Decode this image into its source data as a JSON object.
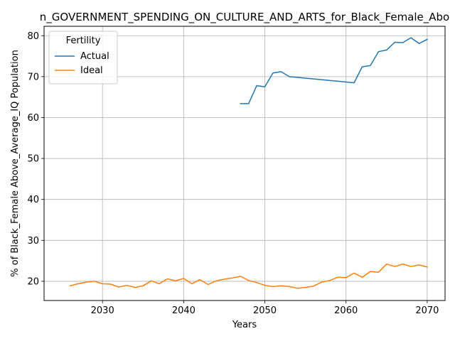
{
  "chart_data": {
    "type": "line",
    "title": "n_GOVERNMENT_SPENDING_ON_CULTURE_AND_ARTS_for_Black_Female_Abo",
    "xlabel": "Years",
    "ylabel": "% of Black_Female Above_Average_IQ Population",
    "xlim": [
      2022.8,
      2072.2
    ],
    "ylim": [
      15.3,
      82.3
    ],
    "xticks": [
      2030,
      2040,
      2050,
      2060,
      2070
    ],
    "yticks": [
      20,
      30,
      40,
      50,
      60,
      70,
      80
    ],
    "grid": true,
    "legend": {
      "title": "Fertility",
      "location": "upper left"
    },
    "series": [
      {
        "name": "Actual",
        "color": "#1f77b4",
        "x": [
          2047,
          2048,
          2049,
          2050,
          2051,
          2052,
          2053,
          2061,
          2062,
          2063,
          2064,
          2065,
          2066,
          2067,
          2068,
          2069,
          2070
        ],
        "y": [
          63.4,
          63.4,
          67.8,
          67.5,
          70.9,
          71.2,
          70.0,
          68.5,
          72.4,
          72.7,
          76.1,
          76.5,
          78.4,
          78.3,
          79.5,
          78.1,
          79.1
        ]
      },
      {
        "name": "Ideal",
        "color": "#ff7f0e",
        "x": [
          2026,
          2027,
          2028,
          2029,
          2030,
          2031,
          2032,
          2033,
          2034,
          2035,
          2036,
          2037,
          2038,
          2039,
          2040,
          2041,
          2042,
          2043,
          2044,
          2045,
          2046,
          2047,
          2048,
          2049,
          2050,
          2051,
          2052,
          2053,
          2054,
          2055,
          2056,
          2057,
          2058,
          2059,
          2060,
          2061,
          2062,
          2063,
          2064,
          2065,
          2066,
          2067,
          2068,
          2069,
          2070
        ],
        "y": [
          18.9,
          19.4,
          19.8,
          20.0,
          19.4,
          19.3,
          18.6,
          19.0,
          18.5,
          18.9,
          20.1,
          19.4,
          20.6,
          20.1,
          20.7,
          19.4,
          20.4,
          19.2,
          20.1,
          20.5,
          20.8,
          21.2,
          20.2,
          19.7,
          19.0,
          18.7,
          18.9,
          18.7,
          18.3,
          18.5,
          18.8,
          19.8,
          20.2,
          21.0,
          20.9,
          22.0,
          21.0,
          22.4,
          22.2,
          24.2,
          23.6,
          24.2,
          23.6,
          24.0,
          23.5
        ]
      }
    ]
  }
}
